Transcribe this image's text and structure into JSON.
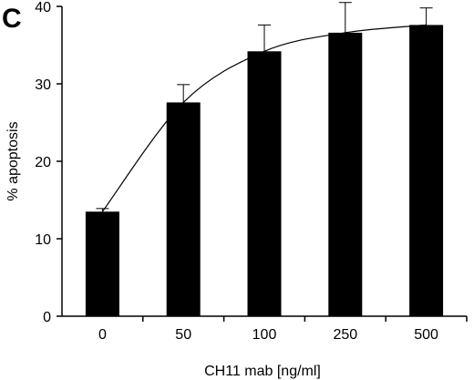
{
  "panel_label": "C",
  "chart_data": {
    "type": "bar",
    "title": "",
    "xlabel": "CH11 mab [ng/ml]",
    "ylabel": "% apoptosis",
    "categories": [
      "0",
      "50",
      "100",
      "250",
      "500"
    ],
    "values": [
      13.5,
      27.6,
      34.2,
      36.6,
      37.6
    ],
    "errors": [
      0.4,
      2.3,
      3.4,
      3.9,
      2.2
    ],
    "ylim": [
      0,
      40
    ],
    "yticks": [
      0,
      10,
      20,
      30,
      40
    ],
    "ytick_labels": [
      "0",
      "10",
      "20",
      "30",
      "40"
    ],
    "grid": false,
    "fit_curve": true,
    "bar_color": "#000000"
  }
}
